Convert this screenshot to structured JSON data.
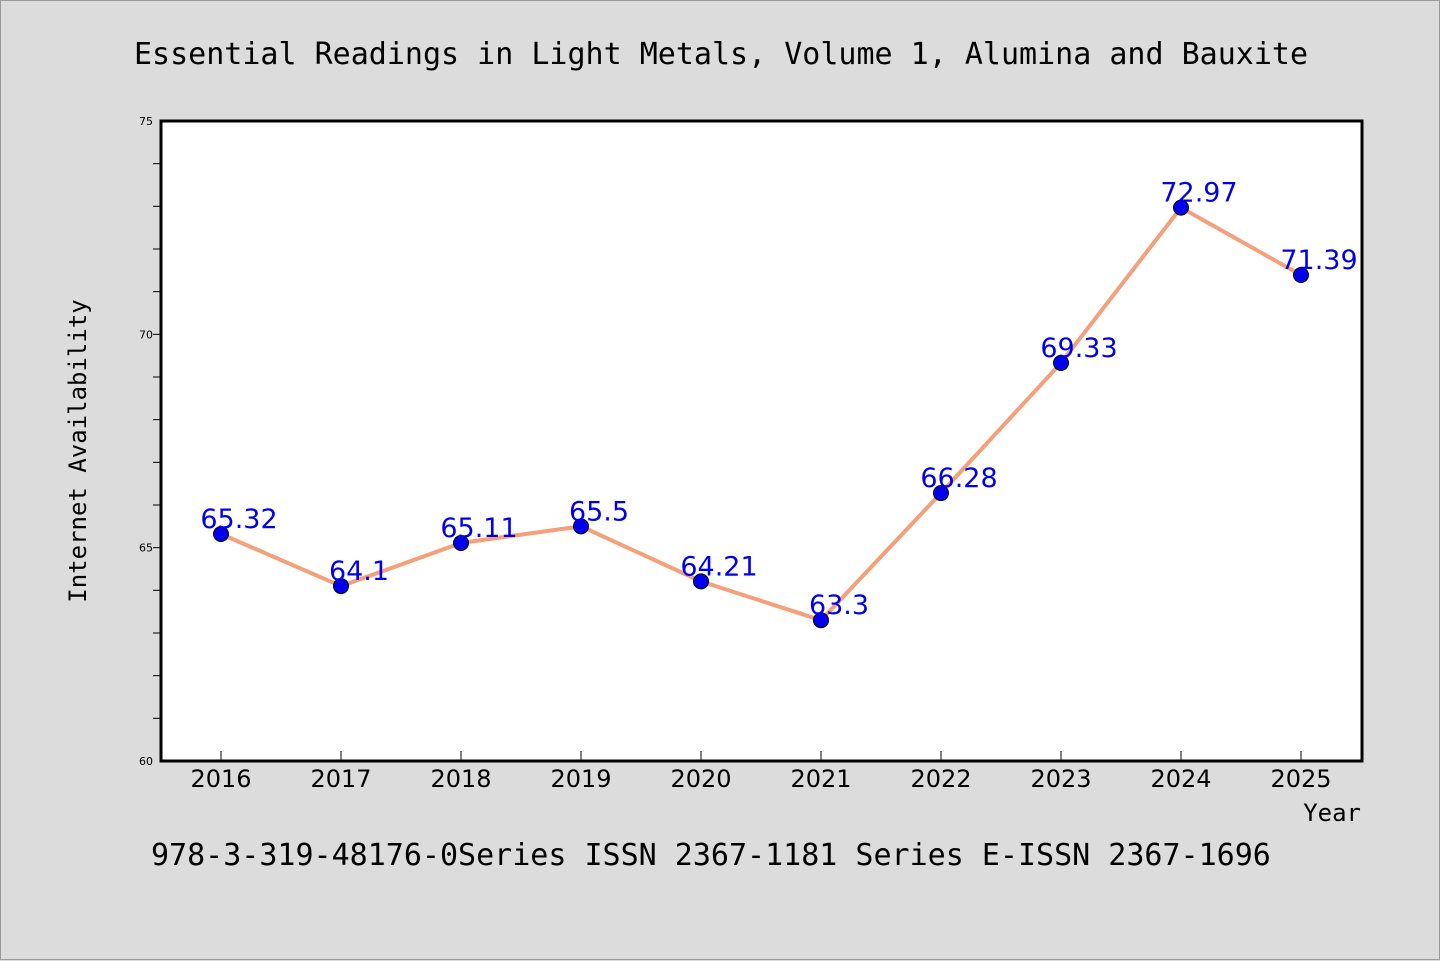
{
  "chart_data": {
    "type": "line",
    "title": "Essential Readings in Light Metals, Volume 1, Alumina and Bauxite",
    "xlabel": "Year",
    "ylabel": "Internet Availability",
    "footer": "978-3-319-48176-0Series ISSN 2367-1181 Series E-ISSN 2367-1696",
    "categories": [
      "2016",
      "2017",
      "2018",
      "2019",
      "2020",
      "2021",
      "2022",
      "2023",
      "2024",
      "2025"
    ],
    "series": [
      {
        "values": [
          65.32,
          64.1,
          65.11,
          65.5,
          64.21,
          63.3,
          66.28,
          69.33,
          72.97,
          71.39
        ],
        "labels": [
          "65.32",
          "64.1",
          "65.11",
          "65.5",
          "64.21",
          "63.3",
          "66.28",
          "69.33",
          "72.97",
          "71.39"
        ]
      }
    ],
    "ylim": [
      60,
      75
    ],
    "yticks": [
      "60",
      "65",
      "70",
      "75"
    ],
    "grid": false,
    "colors": {
      "line": "#f4a07a",
      "marker": "#0000ee",
      "label": "#0000ee",
      "text": "#000000"
    }
  }
}
